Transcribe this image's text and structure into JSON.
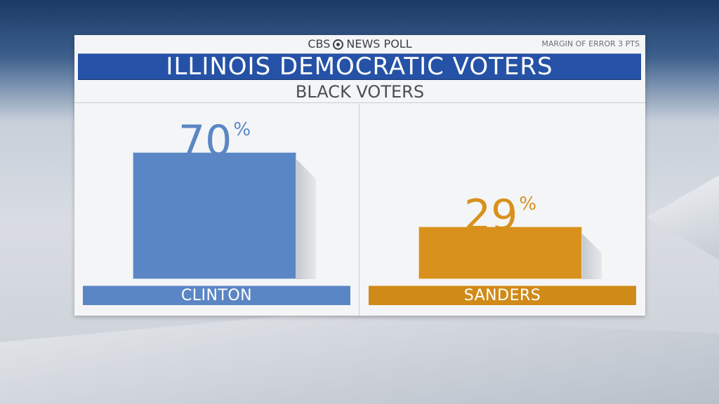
{
  "header": {
    "brand_left": "CBS",
    "brand_right": "NEWS POLL",
    "margin_of_error": "MARGIN OF ERROR 3 PTS"
  },
  "colors": {
    "title_bar": "#2552a6",
    "clinton": "#5b86c5",
    "clinton_label_bar": "#5b86c5",
    "sanders": "#d8911c",
    "sanders_label_bar": "#d08a18"
  },
  "chart_data": {
    "type": "bar",
    "title": "ILLINOIS DEMOCRATIC VOTERS",
    "subtitle": "BLACK VOTERS",
    "categories": [
      "CLINTON",
      "SANDERS"
    ],
    "values": [
      70,
      29
    ],
    "value_labels": [
      "70",
      "29"
    ],
    "unit": "%",
    "ylim": [
      0,
      100
    ],
    "grid": false
  }
}
